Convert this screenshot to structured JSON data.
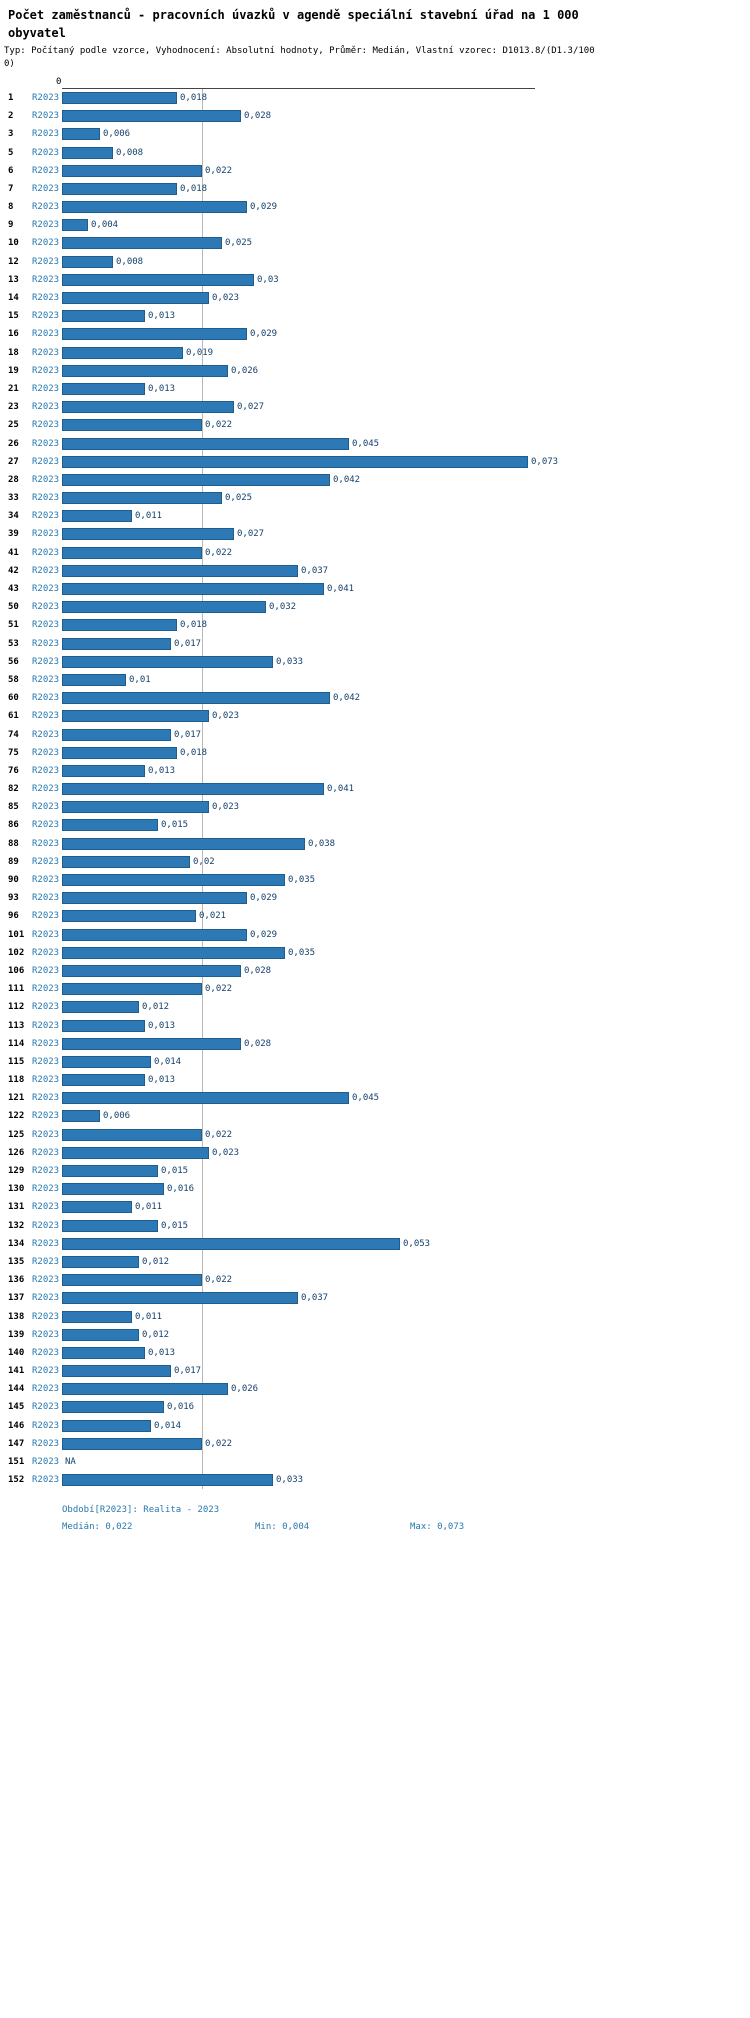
{
  "header": {
    "title": "Počet zaměstnanců - pracovních úvazků v agendě speciální stavební úřad na 1 000 obyvatel",
    "subtitle": "Typ: Počítaný podle vzorce, Vyhodnocení: Absolutní hodnoty, Průměr: Medián, Vlastní vzorec: D1013.8/(D1.3/1000)"
  },
  "colors": {
    "bar_fill": "#2d79b5",
    "bar_border": "#1f5d8c",
    "series_text": "#2878ae",
    "value_text": "#14406b",
    "footer_text": "#2878ae",
    "axis_line": "#444444",
    "gridline": "#b8b8b8",
    "row_id_text": "#000000"
  },
  "chart_data": {
    "type": "bar",
    "orientation": "horizontal",
    "title": "Počet zaměstnanců - pracovních úvazků v agendě speciální stavební úřad na 1 000 obyvatel",
    "series_label": "R2023",
    "axis": {
      "zero_label": "0",
      "min": 0,
      "max": 0.073,
      "median_value": 0.022
    },
    "rows": [
      {
        "id": "1",
        "label": "0,018",
        "value": 0.018
      },
      {
        "id": "2",
        "label": "0,028",
        "value": 0.028
      },
      {
        "id": "3",
        "label": "0,006",
        "value": 0.006
      },
      {
        "id": "5",
        "label": "0,008",
        "value": 0.008
      },
      {
        "id": "6",
        "label": "0,022",
        "value": 0.022
      },
      {
        "id": "7",
        "label": "0,018",
        "value": 0.018
      },
      {
        "id": "8",
        "label": "0,029",
        "value": 0.029
      },
      {
        "id": "9",
        "label": "0,004",
        "value": 0.004
      },
      {
        "id": "10",
        "label": "0,025",
        "value": 0.025
      },
      {
        "id": "12",
        "label": "0,008",
        "value": 0.008
      },
      {
        "id": "13",
        "label": "0,03",
        "value": 0.03
      },
      {
        "id": "14",
        "label": "0,023",
        "value": 0.023
      },
      {
        "id": "15",
        "label": "0,013",
        "value": 0.013
      },
      {
        "id": "16",
        "label": "0,029",
        "value": 0.029
      },
      {
        "id": "18",
        "label": "0,019",
        "value": 0.019
      },
      {
        "id": "19",
        "label": "0,026",
        "value": 0.026
      },
      {
        "id": "21",
        "label": "0,013",
        "value": 0.013
      },
      {
        "id": "23",
        "label": "0,027",
        "value": 0.027
      },
      {
        "id": "25",
        "label": "0,022",
        "value": 0.022
      },
      {
        "id": "26",
        "label": "0,045",
        "value": 0.045
      },
      {
        "id": "27",
        "label": "0,073",
        "value": 0.073
      },
      {
        "id": "28",
        "label": "0,042",
        "value": 0.042
      },
      {
        "id": "33",
        "label": "0,025",
        "value": 0.025
      },
      {
        "id": "34",
        "label": "0,011",
        "value": 0.011
      },
      {
        "id": "39",
        "label": "0,027",
        "value": 0.027
      },
      {
        "id": "41",
        "label": "0,022",
        "value": 0.022
      },
      {
        "id": "42",
        "label": "0,037",
        "value": 0.037
      },
      {
        "id": "43",
        "label": "0,041",
        "value": 0.041
      },
      {
        "id": "50",
        "label": "0,032",
        "value": 0.032
      },
      {
        "id": "51",
        "label": "0,018",
        "value": 0.018
      },
      {
        "id": "53",
        "label": "0,017",
        "value": 0.017
      },
      {
        "id": "56",
        "label": "0,033",
        "value": 0.033
      },
      {
        "id": "58",
        "label": "0,01",
        "value": 0.01
      },
      {
        "id": "60",
        "label": "0,042",
        "value": 0.042
      },
      {
        "id": "61",
        "label": "0,023",
        "value": 0.023
      },
      {
        "id": "74",
        "label": "0,017",
        "value": 0.017
      },
      {
        "id": "75",
        "label": "0,018",
        "value": 0.018
      },
      {
        "id": "76",
        "label": "0,013",
        "value": 0.013
      },
      {
        "id": "82",
        "label": "0,041",
        "value": 0.041
      },
      {
        "id": "85",
        "label": "0,023",
        "value": 0.023
      },
      {
        "id": "86",
        "label": "0,015",
        "value": 0.015
      },
      {
        "id": "88",
        "label": "0,038",
        "value": 0.038
      },
      {
        "id": "89",
        "label": "0,02",
        "value": 0.02
      },
      {
        "id": "90",
        "label": "0,035",
        "value": 0.035
      },
      {
        "id": "93",
        "label": "0,029",
        "value": 0.029
      },
      {
        "id": "96",
        "label": "0,021",
        "value": 0.021
      },
      {
        "id": "101",
        "label": "0,029",
        "value": 0.029
      },
      {
        "id": "102",
        "label": "0,035",
        "value": 0.035
      },
      {
        "id": "106",
        "label": "0,028",
        "value": 0.028
      },
      {
        "id": "111",
        "label": "0,022",
        "value": 0.022
      },
      {
        "id": "112",
        "label": "0,012",
        "value": 0.012
      },
      {
        "id": "113",
        "label": "0,013",
        "value": 0.013
      },
      {
        "id": "114",
        "label": "0,028",
        "value": 0.028
      },
      {
        "id": "115",
        "label": "0,014",
        "value": 0.014
      },
      {
        "id": "118",
        "label": "0,013",
        "value": 0.013
      },
      {
        "id": "121",
        "label": "0,045",
        "value": 0.045
      },
      {
        "id": "122",
        "label": "0,006",
        "value": 0.006
      },
      {
        "id": "125",
        "label": "0,022",
        "value": 0.022
      },
      {
        "id": "126",
        "label": "0,023",
        "value": 0.023
      },
      {
        "id": "129",
        "label": "0,015",
        "value": 0.015
      },
      {
        "id": "130",
        "label": "0,016",
        "value": 0.016
      },
      {
        "id": "131",
        "label": "0,011",
        "value": 0.011
      },
      {
        "id": "132",
        "label": "0,015",
        "value": 0.015
      },
      {
        "id": "134",
        "label": "0,053",
        "value": 0.053
      },
      {
        "id": "135",
        "label": "0,012",
        "value": 0.012
      },
      {
        "id": "136",
        "label": "0,022",
        "value": 0.022
      },
      {
        "id": "137",
        "label": "0,037",
        "value": 0.037
      },
      {
        "id": "138",
        "label": "0,011",
        "value": 0.011
      },
      {
        "id": "139",
        "label": "0,012",
        "value": 0.012
      },
      {
        "id": "140",
        "label": "0,013",
        "value": 0.013
      },
      {
        "id": "141",
        "label": "0,017",
        "value": 0.017
      },
      {
        "id": "144",
        "label": "0,026",
        "value": 0.026
      },
      {
        "id": "145",
        "label": "0,016",
        "value": 0.016
      },
      {
        "id": "146",
        "label": "0,014",
        "value": 0.014
      },
      {
        "id": "147",
        "label": "0,022",
        "value": 0.022
      },
      {
        "id": "151",
        "label": "NA",
        "value": null
      },
      {
        "id": "152",
        "label": "0,033",
        "value": 0.033
      }
    ],
    "footer": {
      "period": "Období[R2023]: Realita - 2023",
      "median_label": "Medián: 0,022",
      "min_label": "Min: 0,004",
      "max_label": "Max: 0,073"
    }
  }
}
